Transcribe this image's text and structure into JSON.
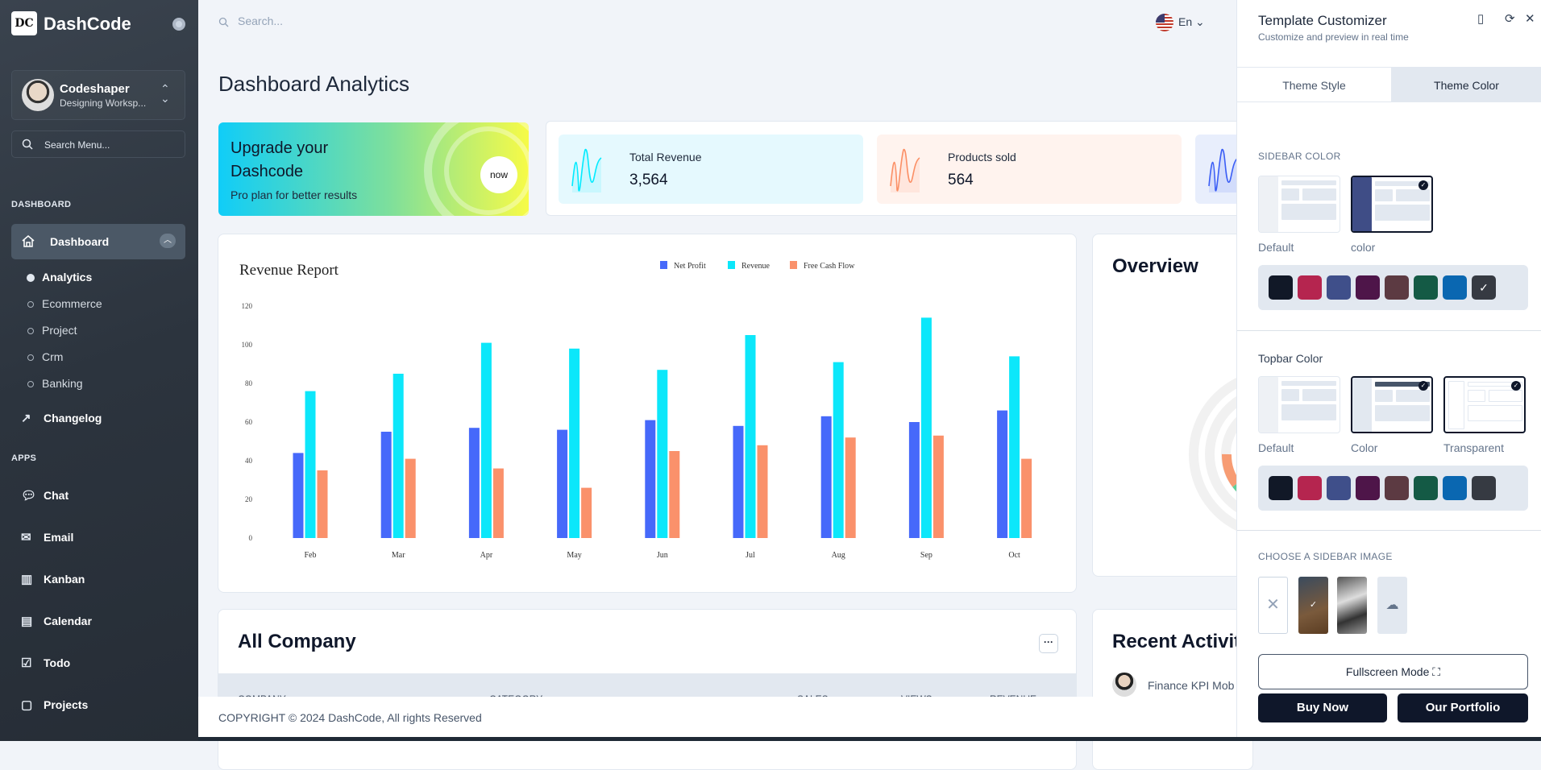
{
  "sidebar": {
    "brand": "DashCode",
    "logo_text": "DC",
    "profile": {
      "name": "Codeshaper",
      "subtitle": "Designing Worksp..."
    },
    "search_placeholder": "Search Menu...",
    "section_dashboard": "DASHBOARD",
    "dashboard_label": "Dashboard",
    "dashboard_items": [
      {
        "label": "Analytics",
        "active": true
      },
      {
        "label": "Ecommerce"
      },
      {
        "label": "Project"
      },
      {
        "label": "Crm"
      },
      {
        "label": "Banking"
      }
    ],
    "changelog": "Changelog",
    "section_apps": "APPS",
    "apps": [
      {
        "label": "Chat",
        "icon": "chat-icon"
      },
      {
        "label": "Email",
        "icon": "mail-icon"
      },
      {
        "label": "Kanban",
        "icon": "kanban-icon"
      },
      {
        "label": "Calendar",
        "icon": "calendar-icon"
      },
      {
        "label": "Todo",
        "icon": "clipboard-check-icon"
      },
      {
        "label": "Projects",
        "icon": "file-icon"
      }
    ]
  },
  "topbar": {
    "search_placeholder": "Search...",
    "language": "En"
  },
  "page_title": "Dashboard Analytics",
  "upgrade": {
    "title": "Upgrade your Dashcode",
    "subtitle": "Pro plan for better results",
    "button": "now"
  },
  "stats": [
    {
      "label": "Total Revenue",
      "value": "3,564",
      "color": "#00ebff",
      "bg": "#e5f9fe"
    },
    {
      "label": "Products sold",
      "value": "564",
      "color": "#fb8f65",
      "bg": "#fff3ee"
    },
    {
      "label": "",
      "value": "",
      "color": "#3b5ef5",
      "bg": "#e8eefc"
    }
  ],
  "revenue_report": {
    "title": "Revenue Report"
  },
  "chart_data": {
    "type": "bar",
    "title": "Revenue Report",
    "categories": [
      "Feb",
      "Mar",
      "Apr",
      "May",
      "Jun",
      "Jul",
      "Aug",
      "Sep",
      "Oct"
    ],
    "series": [
      {
        "name": "Net Profit",
        "color": "#4669fa",
        "values": [
          44,
          55,
          57,
          56,
          61,
          58,
          63,
          60,
          66
        ]
      },
      {
        "name": "Revenue",
        "color": "#0ce7fa",
        "values": [
          76,
          85,
          101,
          98,
          87,
          105,
          91,
          114,
          94
        ]
      },
      {
        "name": "Free Cash Flow",
        "color": "#fa916b",
        "values": [
          35,
          41,
          36,
          26,
          45,
          48,
          52,
          53,
          41
        ]
      }
    ],
    "yticks": [
      "0",
      "20",
      "40",
      "60",
      "80",
      "100",
      "120"
    ],
    "ylim": [
      0,
      120
    ],
    "legend": "top-right",
    "grid": false
  },
  "overview": {
    "title": "Overview"
  },
  "all_company": {
    "title": "All Company",
    "columns": [
      "COMPANY",
      "CATEGORY",
      "SALES",
      "VIEWS",
      "REVENUE"
    ]
  },
  "recent_activity": {
    "title": "Recent Activity",
    "items": [
      "Finance KPI Mob"
    ]
  },
  "footer": "COPYRIGHT © 2024 DashCode, All rights Reserved",
  "customizer": {
    "title": "Template Customizer",
    "subtitle": "Customize and preview in real time",
    "tabs": [
      {
        "label": "Theme Style"
      },
      {
        "label": "Theme Color",
        "active": true
      }
    ],
    "sidebar_color": {
      "label": "SIDEBAR COLOR",
      "options": [
        "Default",
        "color"
      ],
      "selected": "color"
    },
    "topbar_color": {
      "label": "Topbar Color",
      "options": [
        "Default",
        "Color",
        "Transparent"
      ]
    },
    "swatches": [
      "#111827",
      "#b5254f",
      "#3f4f8a",
      "#4e1549",
      "#5c3a42",
      "#145a45",
      "#0a67b1",
      "#363a42"
    ],
    "sidebar_swatch_selected": "#363a42",
    "sidebar_image": {
      "label": "CHOOSE A SIDEBAR IMAGE"
    },
    "fullscreen": "Fullscreen Mode",
    "buy_now": "Buy Now",
    "portfolio": "Our Portfolio"
  }
}
